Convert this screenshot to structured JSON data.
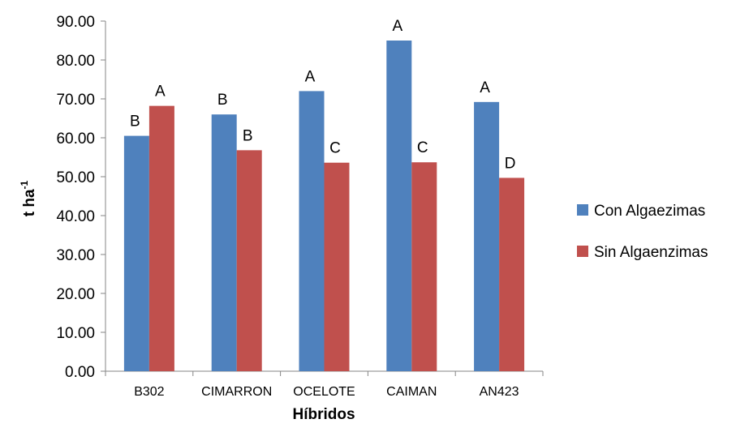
{
  "chart_data": {
    "type": "bar",
    "title": "",
    "xlabel": "Híbridos",
    "ylabel_main": "t ha",
    "ylabel_sup": "-1",
    "ylim": [
      0,
      90
    ],
    "yticks": [
      "0.00",
      "10.00",
      "20.00",
      "30.00",
      "40.00",
      "50.00",
      "60.00",
      "70.00",
      "80.00",
      "90.00"
    ],
    "categories": [
      "B302",
      "CIMARRON",
      "OCELOTE",
      "CAIMAN",
      "AN423"
    ],
    "series": [
      {
        "name": "Con Algaezimas",
        "color": "#4f81bd",
        "values": [
          60.5,
          66.0,
          72.0,
          85.0,
          69.2
        ],
        "labels": [
          "B",
          "B",
          "A",
          "A",
          "A"
        ]
      },
      {
        "name": "Sin Algaenzimas",
        "color": "#c0504d",
        "values": [
          68.2,
          56.8,
          53.6,
          53.7,
          49.7
        ],
        "labels": [
          "A",
          "B",
          "C",
          "C",
          "D"
        ]
      }
    ],
    "legend_position": "right",
    "grid": false
  }
}
